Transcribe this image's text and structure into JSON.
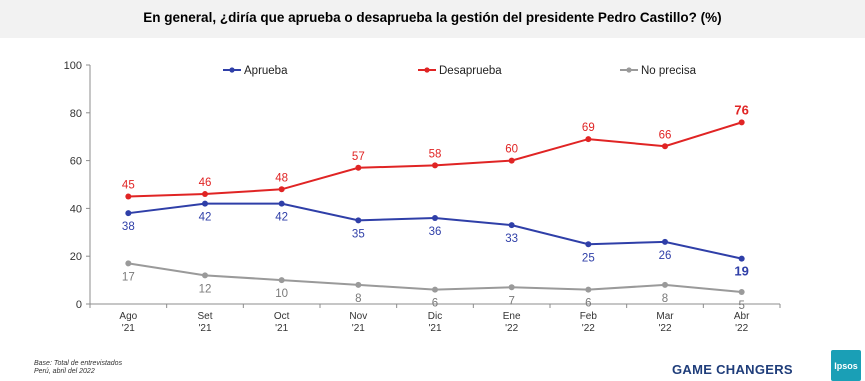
{
  "header": {
    "title": "En general, ¿diría que aprueba o desaprueba la gestión del presidente Pedro Castillo? (%)"
  },
  "chart_data": {
    "type": "line",
    "categories": [
      [
        "Ago",
        "'21"
      ],
      [
        "Set",
        "'21"
      ],
      [
        "Oct",
        "'21"
      ],
      [
        "Nov",
        "'21"
      ],
      [
        "Dic",
        "'21"
      ],
      [
        "Ene",
        "'22"
      ],
      [
        "Feb",
        "'22"
      ],
      [
        "Mar",
        "'22"
      ],
      [
        "Abr",
        "'22"
      ]
    ],
    "ylim": [
      0,
      100
    ],
    "yticks": [
      0,
      20,
      40,
      60,
      80,
      100
    ],
    "grid": false,
    "legend_position": "top",
    "series": [
      {
        "name": "Aprueba",
        "color": "#2f3fa8",
        "values": [
          38,
          42,
          42,
          35,
          36,
          33,
          25,
          26,
          19
        ],
        "label_position": "below"
      },
      {
        "name": "Desaprueba",
        "color": "#e02424",
        "values": [
          45,
          46,
          48,
          57,
          58,
          60,
          69,
          66,
          76
        ],
        "label_position": "above"
      },
      {
        "name": "No precisa",
        "color": "#9a9a9a",
        "values": [
          17,
          12,
          10,
          8,
          6,
          7,
          6,
          8,
          5
        ],
        "label_position": "below"
      }
    ]
  },
  "footer": {
    "note_line1": "Base: Total de entrevistados",
    "note_line2": "Perú, abril del 2022",
    "brand": "GAME CHANGERS",
    "logo_text": "Ipsos"
  }
}
